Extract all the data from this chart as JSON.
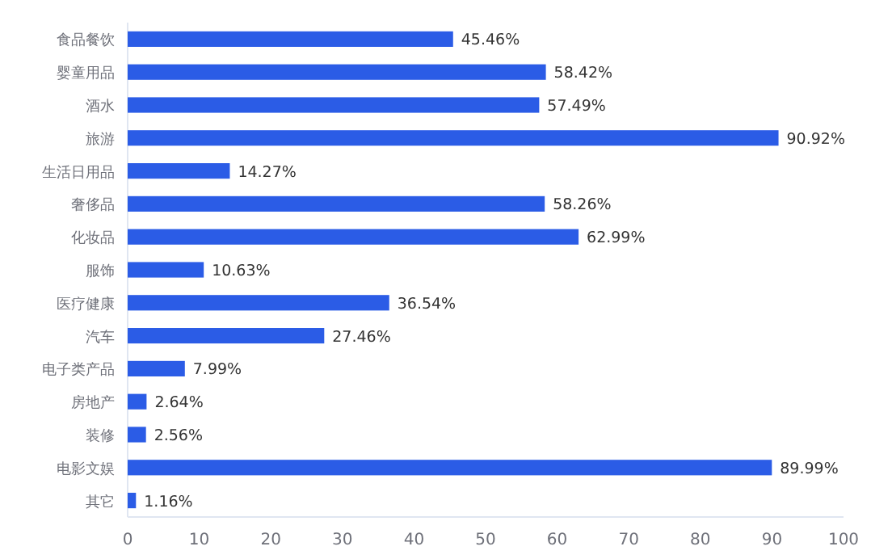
{
  "chart_data": {
    "type": "bar",
    "orientation": "horizontal",
    "categories": [
      "食品餐饮",
      "婴童用品",
      "酒水",
      "旅游",
      "生活日用品",
      "奢侈品",
      "化妆品",
      "服饰",
      "医疗健康",
      "汽车",
      "电子类产品",
      "房地产",
      "装修",
      "电影文娱",
      "其它"
    ],
    "values": [
      45.46,
      58.42,
      57.49,
      90.92,
      14.27,
      58.26,
      62.99,
      10.63,
      36.54,
      27.46,
      7.99,
      2.64,
      2.56,
      89.99,
      1.16
    ],
    "value_labels": [
      "45.46%",
      "58.42%",
      "57.49%",
      "90.92%",
      "14.27%",
      "58.26%",
      "62.99%",
      "10.63%",
      "36.54%",
      "27.46%",
      "7.99%",
      "2.64%",
      "2.56%",
      "89.99%",
      "1.16%"
    ],
    "color": "#2b5ce6",
    "xlim": [
      0,
      100
    ],
    "xticks": [
      0,
      10,
      20,
      30,
      40,
      50,
      60,
      70,
      80,
      90,
      100
    ]
  }
}
